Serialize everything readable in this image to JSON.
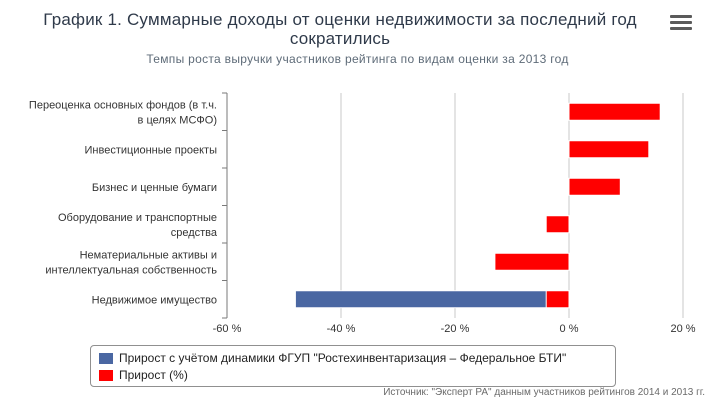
{
  "title_line1": "График 1. Суммарные доходы от оценки недвижимости за последний год",
  "title_line2": "сократились",
  "subtitle": "Темпы роста выручки участников рейтинга по видам оценки за 2013 год",
  "menu_icon": "hamburger-menu-icon",
  "source": "Источник: \"Эксперт РА\" данным участников рейтингов 2014 и 2013 гг.",
  "colors": {
    "blue": "#4a67a2",
    "red": "#ff0000",
    "grid": "#c8c8c8",
    "axis": "#7a7a7a"
  },
  "chart_data": {
    "type": "bar",
    "orientation": "horizontal",
    "categories": [
      [
        "Переоценка основных фондов (в т.ч.",
        "в целях МСФО)"
      ],
      [
        "Инвестиционные проекты"
      ],
      [
        "Бизнес и ценные бумаги"
      ],
      [
        "Оборудование и транспортные",
        "средства"
      ],
      [
        "Нематериальные активы и",
        "интеллектуальная собственность"
      ],
      [
        "Недвижимое имущество"
      ]
    ],
    "xlim": [
      -60,
      20
    ],
    "xticks": [
      -60,
      -40,
      -20,
      0,
      20
    ],
    "xtick_labels": [
      "-60 %",
      "-40 %",
      "-20 %",
      "0 %",
      "20 %"
    ],
    "grid": true,
    "legend_position": "bottom",
    "series": [
      {
        "name": "Прирост с учётом динамики ФГУП \"Ростехинвентаризация – Федеральное БТИ\"",
        "color": "#4a67a2",
        "values": [
          null,
          null,
          null,
          null,
          null,
          -48
        ]
      },
      {
        "name": "Прирост (%)",
        "color": "#ff0000",
        "values": [
          16,
          14,
          9,
          -4,
          -13,
          -4
        ]
      }
    ]
  }
}
